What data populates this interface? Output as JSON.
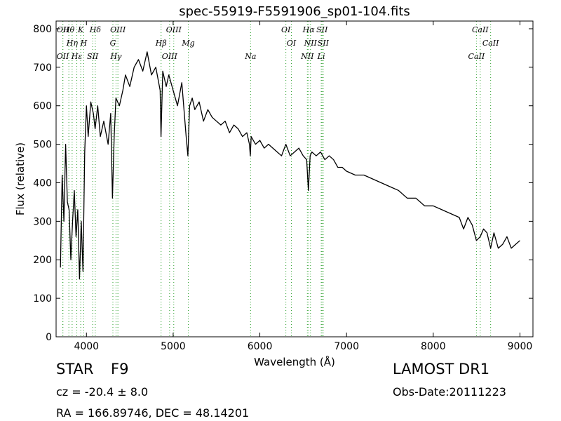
{
  "chart_data": {
    "type": "line",
    "title": "spec-55919-F5591906_sp01-104.fits",
    "xlabel": "Wavelength (Å)",
    "ylabel": "Flux (relative)",
    "xlim": [
      3650,
      9150
    ],
    "ylim": [
      0,
      820
    ],
    "xticks": [
      4000,
      5000,
      6000,
      7000,
      8000,
      9000
    ],
    "yticks": [
      0,
      100,
      200,
      300,
      400,
      500,
      600,
      700,
      800
    ],
    "grid": false,
    "line_color": "#000000",
    "marker_color": "#2ca02c",
    "series": [
      {
        "x": [
          3700,
          3720,
          3740,
          3760,
          3780,
          3800,
          3820,
          3840,
          3860,
          3880,
          3900,
          3920,
          3940,
          3960,
          3980,
          4000,
          4020,
          4050,
          4080,
          4100,
          4130,
          4160,
          4200,
          4250,
          4280,
          4300,
          4320,
          4340,
          4380,
          4420,
          4450,
          4500,
          4550,
          4600,
          4650,
          4700,
          4750,
          4800,
          4850,
          4860,
          4880,
          4920,
          4950,
          5000,
          5050,
          5100,
          5150,
          5170,
          5190,
          5220,
          5250,
          5300,
          5350,
          5400,
          5450,
          5500,
          5550,
          5600,
          5650,
          5700,
          5750,
          5800,
          5850,
          5880,
          5890,
          5900,
          5950,
          6000,
          6050,
          6100,
          6150,
          6200,
          6250,
          6300,
          6350,
          6400,
          6450,
          6500,
          6540,
          6560,
          6580,
          6600,
          6650,
          6700,
          6750,
          6800,
          6850,
          6900,
          6950,
          7000,
          7100,
          7200,
          7300,
          7400,
          7500,
          7600,
          7700,
          7800,
          7900,
          8000,
          8100,
          8200,
          8300,
          8350,
          8400,
          8450,
          8498,
          8542,
          8580,
          8620,
          8662,
          8700,
          8750,
          8800,
          8850,
          8900,
          8950,
          9000
        ],
        "y": [
          180,
          420,
          300,
          500,
          350,
          330,
          200,
          300,
          380,
          260,
          330,
          150,
          300,
          170,
          480,
          600,
          520,
          610,
          580,
          540,
          600,
          520,
          560,
          500,
          580,
          360,
          520,
          620,
          600,
          640,
          680,
          650,
          700,
          720,
          690,
          740,
          680,
          700,
          640,
          520,
          690,
          650,
          680,
          640,
          600,
          660,
          520,
          470,
          600,
          620,
          590,
          610,
          560,
          590,
          570,
          560,
          550,
          560,
          530,
          550,
          540,
          520,
          530,
          500,
          470,
          520,
          500,
          510,
          490,
          500,
          490,
          480,
          470,
          500,
          470,
          480,
          490,
          470,
          460,
          380,
          470,
          480,
          470,
          480,
          460,
          470,
          460,
          440,
          440,
          430,
          420,
          420,
          410,
          400,
          390,
          380,
          360,
          360,
          340,
          340,
          330,
          320,
          310,
          280,
          310,
          290,
          250,
          260,
          280,
          270,
          230,
          270,
          230,
          240,
          260,
          230,
          240,
          250
        ]
      }
    ],
    "lines": {
      "top": [
        {
          "x": 3797,
          "label": "Hθ"
        },
        {
          "x": 3835,
          "label": "Hη"
        },
        {
          "x": 3889,
          "label": "Hε"
        },
        {
          "x": 3934,
          "label": "K"
        },
        {
          "x": 3969,
          "label": "H"
        },
        {
          "x": 4072,
          "label": "SII"
        },
        {
          "x": 4102,
          "label": "Hδ"
        },
        {
          "x": 4305,
          "label": "G"
        },
        {
          "x": 4341,
          "label": "Hγ"
        },
        {
          "x": 4363,
          "label": "OIII"
        },
        {
          "x": 4861,
          "label": "Hβ"
        },
        {
          "x": 4959,
          "label": "OIII"
        },
        {
          "x": 5007,
          "label": "OIII"
        },
        {
          "x": 5175,
          "label": "Mg"
        },
        {
          "x": 5893,
          "label": "Na"
        },
        {
          "x": 6300,
          "label": "OI"
        },
        {
          "x": 6364,
          "label": "OI"
        },
        {
          "x": 6548,
          "label": "NII"
        },
        {
          "x": 6563,
          "label": "Hα"
        },
        {
          "x": 6584,
          "label": "NII"
        },
        {
          "x": 6708,
          "label": "Li"
        },
        {
          "x": 6717,
          "label": "SII"
        },
        {
          "x": 6731,
          "label": "SII"
        },
        {
          "x": 8498,
          "label": "CaII"
        },
        {
          "x": 8542,
          "label": "CaII"
        },
        {
          "x": 8662,
          "label": "CaII"
        }
      ],
      "extra": [
        {
          "x": 3727,
          "label": "OII"
        },
        {
          "x": 3729,
          "label": "OII"
        }
      ]
    }
  },
  "info": {
    "object_class": "STAR",
    "subclass": "F9",
    "release": "LAMOST DR1",
    "cz": "cz = -20.4 ± 8.0",
    "obs_date": "Obs-Date:20111223",
    "coords": "RA = 166.89746, DEC = 48.14201"
  }
}
